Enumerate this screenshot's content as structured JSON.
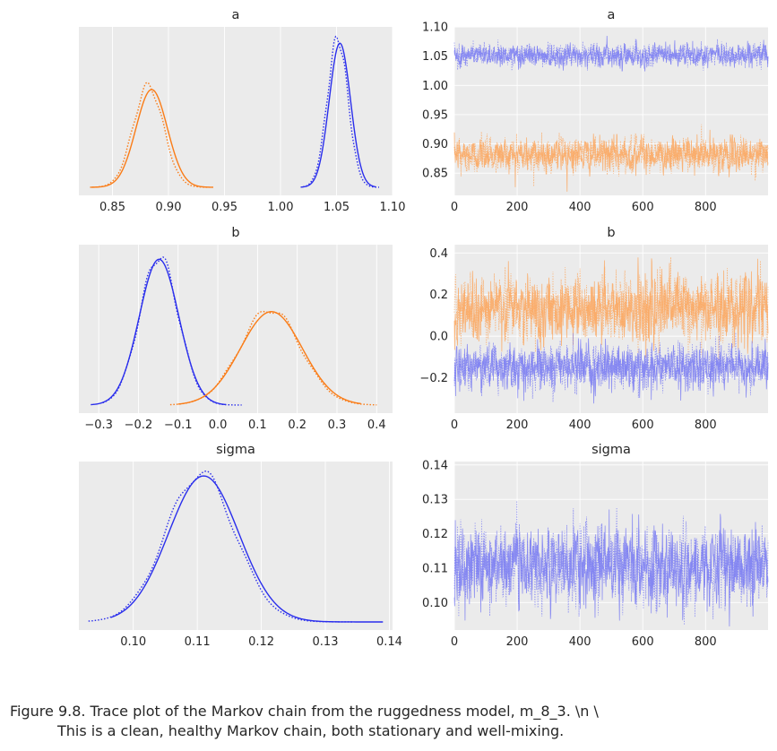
{
  "caption": {
    "line1": "Figure 9.8. Trace plot of the Markov chain from the ruggedness model, m_8_3. \\n \\",
    "line2": "This is a clean, healthy Markov chain, both stationary and well-mixing."
  },
  "colors": {
    "chain_blue": "#2a2eec",
    "chain_orange": "#fa7c17",
    "trace_blue": "#7d7ff2",
    "trace_orange": "#fba861",
    "panel_bg": "#ebebeb"
  },
  "chart_data": [
    {
      "type": "line",
      "panel": "density",
      "title": "a",
      "xlim": [
        0.82,
        1.1
      ],
      "xticks": [
        0.85,
        0.9,
        0.95,
        1.0,
        1.05,
        1.1
      ],
      "xtick_labels": [
        "0.85",
        "0.90",
        "0.95",
        "1.00",
        "1.05",
        "1.10"
      ],
      "yticks": [],
      "grid": true,
      "series": [
        {
          "color": "orange",
          "style": "solid",
          "mean": 0.885,
          "sd": 0.014,
          "range": [
            0.83,
            0.94
          ]
        },
        {
          "color": "orange",
          "style": "dotted",
          "mean": 0.882,
          "sd": 0.0135,
          "range": [
            0.832,
            0.936
          ]
        },
        {
          "color": "blue",
          "style": "solid",
          "mean": 1.053,
          "sd": 0.0095,
          "range": [
            1.018,
            1.085
          ]
        },
        {
          "color": "blue",
          "style": "dotted",
          "mean": 1.051,
          "sd": 0.0092,
          "range": [
            1.02,
            1.088
          ]
        }
      ]
    },
    {
      "type": "line",
      "panel": "trace",
      "title": "a",
      "xlim": [
        0,
        999
      ],
      "ylim": [
        0.812,
        1.1
      ],
      "xticks": [
        0,
        200,
        400,
        600,
        800
      ],
      "yticks": [
        0.85,
        0.9,
        0.95,
        1.0,
        1.05,
        1.1
      ],
      "ytick_labels": [
        "0.85",
        "0.90",
        "0.95",
        "1.00",
        "1.05",
        "1.10"
      ],
      "draws": 1000,
      "grid": true,
      "series": [
        {
          "color": "orange",
          "mean": 0.882,
          "sd": 0.014
        },
        {
          "color": "blue",
          "mean": 1.052,
          "sd": 0.0095
        }
      ]
    },
    {
      "type": "line",
      "panel": "density",
      "title": "b",
      "xlim": [
        -0.35,
        0.44
      ],
      "xticks": [
        -0.3,
        -0.2,
        -0.1,
        0.0,
        0.1,
        0.2,
        0.3,
        0.4
      ],
      "xtick_labels": [
        "−0.3",
        "−0.2",
        "−0.1",
        "0.0",
        "0.1",
        "0.2",
        "0.3",
        "0.4"
      ],
      "yticks": [],
      "grid": true,
      "series": [
        {
          "color": "blue",
          "style": "solid",
          "mean": -0.148,
          "sd": 0.05,
          "range": [
            -0.32,
            0.02
          ]
        },
        {
          "color": "blue",
          "style": "dotted",
          "mean": -0.148,
          "sd": 0.049,
          "range": [
            -0.29,
            0.06
          ]
        },
        {
          "color": "orange",
          "style": "solid",
          "mean": 0.135,
          "sd": 0.078,
          "range": [
            -0.1,
            0.36
          ]
        },
        {
          "color": "orange",
          "style": "dotted",
          "mean": 0.132,
          "sd": 0.076,
          "range": [
            -0.12,
            0.4
          ]
        }
      ]
    },
    {
      "type": "line",
      "panel": "trace",
      "title": "b",
      "xlim": [
        0,
        999
      ],
      "ylim": [
        -0.37,
        0.44
      ],
      "xticks": [
        0,
        200,
        400,
        600,
        800
      ],
      "yticks": [
        -0.2,
        0.0,
        0.2,
        0.4
      ],
      "ytick_labels": [
        "−0.2",
        "0.0",
        "0.2",
        "0.4"
      ],
      "draws": 1000,
      "grid": true,
      "series": [
        {
          "color": "orange",
          "mean": 0.133,
          "sd": 0.077
        },
        {
          "color": "blue",
          "mean": -0.148,
          "sd": 0.05
        }
      ]
    },
    {
      "type": "line",
      "panel": "density",
      "title": "sigma",
      "xlim": [
        0.0915,
        0.1405
      ],
      "xticks": [
        0.1,
        0.11,
        0.12,
        0.13,
        0.14
      ],
      "xtick_labels": [
        "0.10",
        "0.11",
        "0.12",
        "0.13",
        "0.14"
      ],
      "yticks": [],
      "grid": true,
      "series": [
        {
          "color": "blue",
          "style": "solid",
          "mean": 0.111,
          "sd": 0.0055,
          "range": [
            0.0965,
            0.139
          ]
        },
        {
          "color": "blue",
          "style": "dotted",
          "mean": 0.1105,
          "sd": 0.0054,
          "range": [
            0.093,
            0.1345
          ]
        }
      ]
    },
    {
      "type": "line",
      "panel": "trace",
      "title": "sigma",
      "xlim": [
        0,
        999
      ],
      "ylim": [
        0.092,
        0.141
      ],
      "xticks": [
        0,
        200,
        400,
        600,
        800
      ],
      "yticks": [
        0.1,
        0.11,
        0.12,
        0.13,
        0.14
      ],
      "ytick_labels": [
        "0.10",
        "0.11",
        "0.12",
        "0.13",
        "0.14"
      ],
      "draws": 1000,
      "grid": true,
      "series": [
        {
          "color": "blue",
          "mean": 0.111,
          "sd": 0.0055
        }
      ]
    }
  ]
}
